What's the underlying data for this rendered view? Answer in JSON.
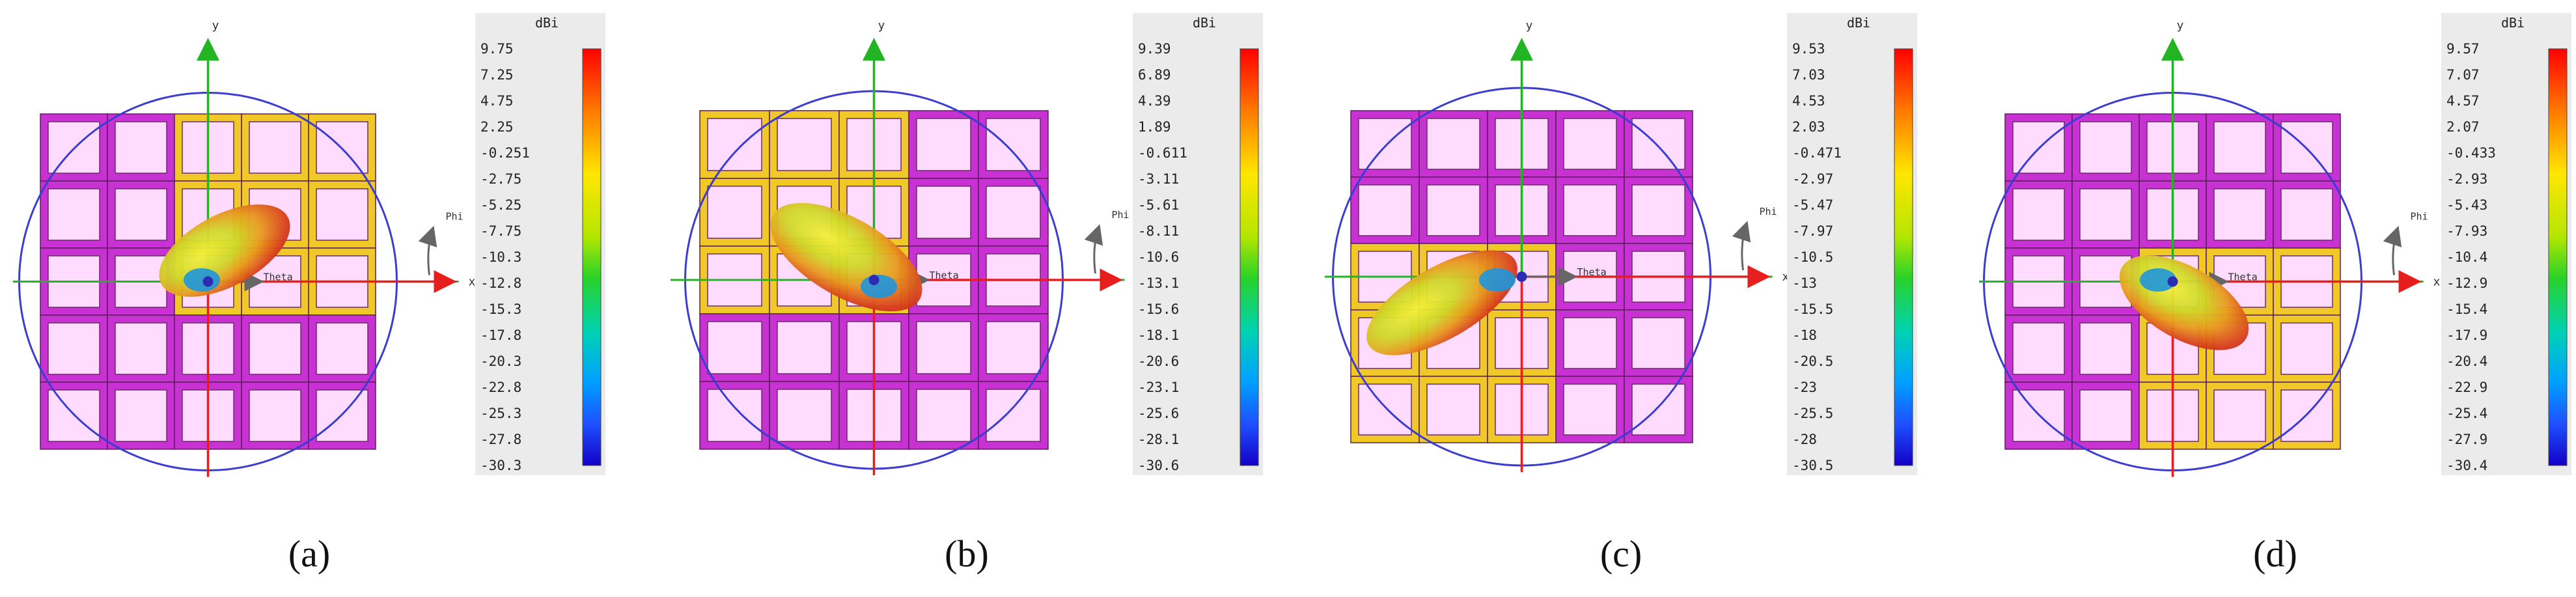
{
  "unit": "dBi",
  "axes": {
    "x": "x",
    "y": "y",
    "phi": "Phi",
    "theta": "Theta"
  },
  "colors": {
    "magenta_frame": "#c832d2",
    "yellow_frame": "#f0c828",
    "cell_fill": "#ffdcff",
    "circle": "#3c3cd2",
    "x_axis": "#e61e1e",
    "y_axis": "#22b422",
    "beam_core": "#f0e628",
    "beam_edge": "#c81e1e",
    "colorbar_bg": "#ebebeb"
  },
  "panels": [
    {
      "caption": "(a)",
      "colorbar": [
        "9.75",
        "7.25",
        "4.75",
        "2.25",
        "-0.251",
        "-2.75",
        "-5.25",
        "-7.75",
        "-10.3",
        "-12.8",
        "-15.3",
        "-17.8",
        "-20.3",
        "-22.8",
        "-25.3",
        "-27.8",
        "-30.3"
      ]
    },
    {
      "caption": "(b)",
      "colorbar": [
        "9.39",
        "6.89",
        "4.39",
        "1.89",
        "-0.611",
        "-3.11",
        "-5.61",
        "-8.11",
        "-10.6",
        "-13.1",
        "-15.6",
        "-18.1",
        "-20.6",
        "-23.1",
        "-25.6",
        "-28.1",
        "-30.6"
      ]
    },
    {
      "caption": "(c)",
      "colorbar": [
        "9.53",
        "7.03",
        "4.53",
        "2.03",
        "-0.471",
        "-2.97",
        "-5.47",
        "-7.97",
        "-10.5",
        "-13",
        "-15.5",
        "-18",
        "-20.5",
        "-23",
        "-25.5",
        "-28",
        "-30.5"
      ]
    },
    {
      "caption": "(d)",
      "colorbar": [
        "9.57",
        "7.07",
        "4.57",
        "2.07",
        "-0.433",
        "-2.93",
        "-5.43",
        "-7.93",
        "-10.4",
        "-12.9",
        "-15.4",
        "-17.9",
        "-20.4",
        "-22.9",
        "-25.4",
        "-27.9",
        "-30.4"
      ]
    }
  ]
}
